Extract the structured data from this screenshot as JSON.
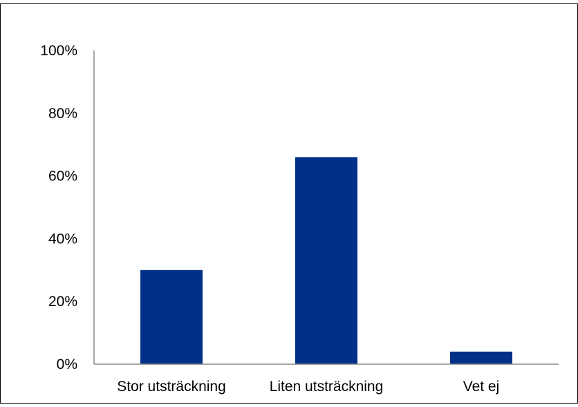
{
  "chart_data": {
    "type": "bar",
    "title": "",
    "xlabel": "",
    "ylabel": "",
    "categories": [
      "Stor utsträckning",
      "Liten utsträckning",
      "Vet ej"
    ],
    "values": [
      30,
      66,
      4
    ],
    "value_unit": "percent",
    "ylim": [
      0,
      100
    ],
    "yticks": [
      0,
      20,
      40,
      60,
      80,
      100
    ],
    "ytick_labels": [
      "0%",
      "20%",
      "40%",
      "60%",
      "80%",
      "100%"
    ],
    "grid": false,
    "legend": "none",
    "bar_color": "#003087"
  }
}
